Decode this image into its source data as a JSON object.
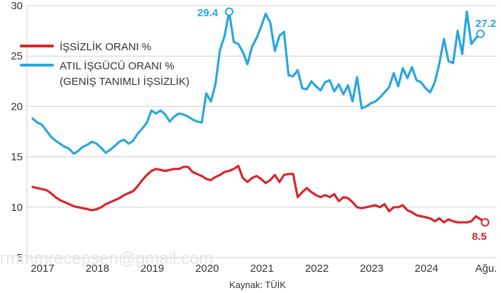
{
  "chart_data": {
    "type": "line",
    "title": "",
    "xlabel": "",
    "ylabel": "",
    "ylim": [
      5,
      30
    ],
    "y_ticks": [
      5,
      10,
      15,
      20,
      25,
      30
    ],
    "x_ticks": [
      "2017",
      "2018",
      "2019",
      "2020",
      "2021",
      "2022",
      "2023",
      "2024",
      "Ağu."
    ],
    "grid": "horizontal",
    "legend_position": "top-left",
    "source": "Kaynak: TÜİK",
    "series": [
      {
        "name": "İŞSİZLİK ORANI %",
        "color": "#d7262d",
        "end_label": "8.5",
        "values": [
          12.0,
          11.9,
          11.8,
          11.7,
          11.4,
          11.0,
          10.7,
          10.5,
          10.3,
          10.1,
          10.0,
          9.9,
          9.8,
          9.7,
          9.8,
          10.0,
          10.3,
          10.5,
          10.7,
          10.9,
          11.2,
          11.4,
          11.6,
          12.1,
          12.7,
          13.2,
          13.6,
          13.8,
          13.7,
          13.6,
          13.7,
          13.8,
          13.8,
          14.0,
          14.0,
          13.5,
          13.3,
          13.1,
          12.8,
          12.7,
          13.0,
          13.2,
          13.5,
          13.6,
          13.8,
          14.1,
          12.9,
          12.5,
          12.9,
          13.1,
          12.8,
          12.4,
          12.7,
          13.2,
          12.5,
          13.2,
          13.3,
          13.3,
          11.0,
          11.5,
          11.9,
          11.5,
          11.2,
          11.0,
          11.2,
          11.0,
          11.3,
          10.6,
          11.0,
          10.9,
          10.5,
          10.0,
          9.9,
          10.0,
          10.1,
          10.2,
          10.0,
          10.3,
          9.6,
          10.0,
          10.0,
          10.2,
          9.7,
          9.5,
          9.2,
          9.1,
          9.0,
          8.9,
          8.6,
          8.9,
          8.5,
          8.8,
          8.6,
          8.5,
          8.5,
          8.5,
          8.6,
          9.1,
          8.8,
          8.5
        ]
      },
      {
        "name": "ATIL İŞGÜCÜ ORANI %",
        "name_line2": "(GENİŞ TANIMLI İŞSİZLİK)",
        "color": "#2aa7dc",
        "end_label": "27.2",
        "peak_label": "29.4",
        "values": [
          18.8,
          18.4,
          18.2,
          17.6,
          17.0,
          16.6,
          16.3,
          16.0,
          15.8,
          15.3,
          15.6,
          16.0,
          16.2,
          16.5,
          16.3,
          15.9,
          15.4,
          15.7,
          16.1,
          16.5,
          16.7,
          16.3,
          16.6,
          17.3,
          17.8,
          18.4,
          19.6,
          19.3,
          19.6,
          19.2,
          18.5,
          19.0,
          19.3,
          19.2,
          19.0,
          18.7,
          18.5,
          18.4,
          21.3,
          20.5,
          22.2,
          25.6,
          27.0,
          29.4,
          26.4,
          26.2,
          25.4,
          24.2,
          25.9,
          26.8,
          27.9,
          29.2,
          28.3,
          25.5,
          27.0,
          27.4,
          23.1,
          23.0,
          23.6,
          21.8,
          21.7,
          22.5,
          22.0,
          21.6,
          22.4,
          22.6,
          21.5,
          22.2,
          21.2,
          22.1,
          20.5,
          22.9,
          19.8,
          20.0,
          20.3,
          20.5,
          20.9,
          21.4,
          21.9,
          23.3,
          22.0,
          23.8,
          22.8,
          23.9,
          22.6,
          22.4,
          21.8,
          21.4,
          22.4,
          24.3,
          26.7,
          24.5,
          24.3,
          27.5,
          25.2,
          29.4,
          26.2,
          26.8,
          27.2
        ]
      }
    ]
  },
  "watermark": "rmmmrecepsen@gmail.com"
}
